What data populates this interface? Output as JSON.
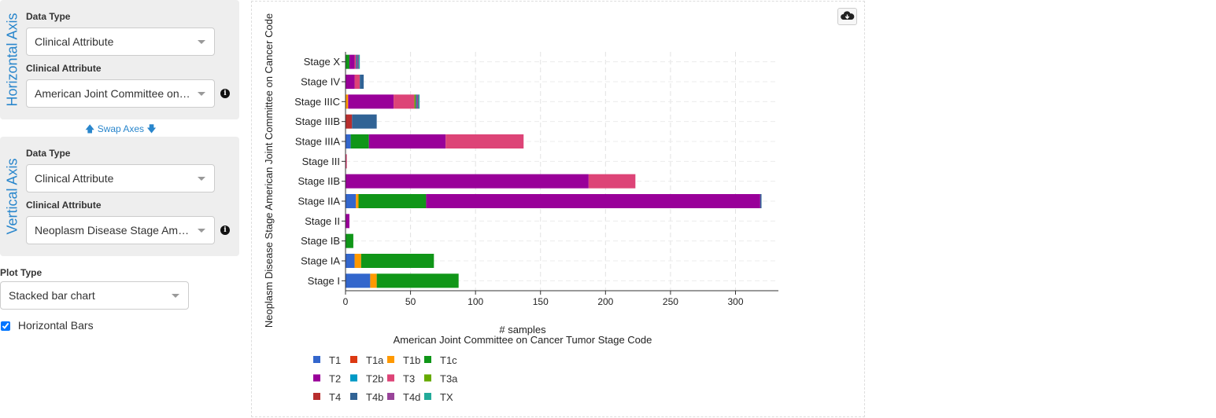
{
  "controls": {
    "horizontal": {
      "title": "Horizontal Axis",
      "data_type_label": "Data Type",
      "data_type_value": "Clinical Attribute",
      "attr_label": "Clinical Attribute",
      "attr_value": "American Joint Committee on Cancer Tumor Stage Code"
    },
    "swap_label": "Swap Axes",
    "vertical": {
      "title": "Vertical Axis",
      "data_type_label": "Data Type",
      "data_type_value": "Clinical Attribute",
      "attr_label": "Clinical Attribute",
      "attr_value": "Neoplasm Disease Stage American Joint Committee on Cancer Code"
    },
    "plot_type_label": "Plot Type",
    "plot_type_value": "Stacked bar chart",
    "horizontal_bars_label": "Horizontal Bars",
    "horizontal_bars_checked": true
  },
  "chart_data": {
    "type": "bar",
    "orientation": "horizontal",
    "stacked": true,
    "xlabel": "# samples",
    "xlabel2": "American Joint Committee on Cancer Tumor Stage Code",
    "ylabel": "Neoplasm Disease Stage American Joint Committee on Cancer Code",
    "xlim": [
      0,
      333
    ],
    "xticks": [
      0,
      50,
      100,
      150,
      200,
      250,
      300
    ],
    "grid": true,
    "legend_position": "bottom",
    "categories": [
      "Stage I",
      "Stage IA",
      "Stage IB",
      "Stage II",
      "Stage IIA",
      "Stage IIB",
      "Stage III",
      "Stage IIIA",
      "Stage IIIB",
      "Stage IIIC",
      "Stage IV",
      "Stage X"
    ],
    "series": [
      {
        "name": "T1",
        "color": "#3366cc",
        "values": [
          19,
          7,
          0,
          0,
          8,
          0,
          0,
          4,
          0,
          0,
          0,
          0
        ]
      },
      {
        "name": "T1a",
        "color": "#dc3912",
        "values": [
          0,
          0,
          0,
          0,
          0,
          0,
          0,
          0,
          0,
          0,
          0,
          0
        ]
      },
      {
        "name": "T1b",
        "color": "#ff9900",
        "values": [
          5,
          5,
          0,
          0,
          2,
          0,
          0,
          0,
          0,
          2,
          0,
          0
        ]
      },
      {
        "name": "T1c",
        "color": "#109618",
        "values": [
          63,
          56,
          6,
          0,
          52,
          0,
          0,
          14,
          0,
          0,
          0,
          3
        ]
      },
      {
        "name": "T2",
        "color": "#990099",
        "values": [
          0,
          0,
          0,
          3,
          257,
          187,
          0,
          59,
          0,
          35,
          7,
          4
        ]
      },
      {
        "name": "T2b",
        "color": "#0099c6",
        "values": [
          0,
          0,
          0,
          0,
          0,
          0,
          0,
          0,
          0,
          0,
          0,
          0
        ]
      },
      {
        "name": "T3",
        "color": "#dd4477",
        "values": [
          0,
          0,
          0,
          0,
          0,
          36,
          1,
          60,
          0,
          16,
          4,
          1
        ]
      },
      {
        "name": "T3a",
        "color": "#66aa00",
        "values": [
          0,
          0,
          0,
          0,
          0,
          0,
          0,
          0,
          0,
          1,
          0,
          0
        ]
      },
      {
        "name": "T4",
        "color": "#b82e2e",
        "values": [
          0,
          0,
          0,
          0,
          0,
          0,
          0,
          0,
          5,
          0,
          0,
          0
        ]
      },
      {
        "name": "T4b",
        "color": "#316395",
        "values": [
          0,
          0,
          0,
          0,
          1,
          0,
          0,
          0,
          19,
          1,
          3,
          1
        ]
      },
      {
        "name": "T4d",
        "color": "#994499",
        "values": [
          0,
          0,
          0,
          0,
          0,
          0,
          0,
          0,
          0,
          1,
          0,
          1
        ]
      },
      {
        "name": "TX",
        "color": "#22aa99",
        "values": [
          0,
          0,
          0,
          0,
          0,
          0,
          0,
          0,
          0,
          1,
          0,
          1
        ]
      }
    ]
  }
}
